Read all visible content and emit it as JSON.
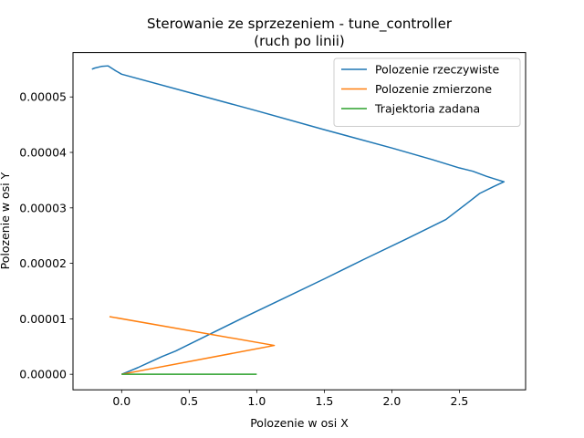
{
  "chart_data": {
    "type": "line",
    "title_line1": "Sterowanie ze sprzezeniem - tune_controller",
    "title_line2": "(ruch po linii)",
    "xlabel": "Polozenie w osi X",
    "ylabel": "Polozenie w osi Y",
    "xlim": [
      -0.36,
      2.99
    ],
    "ylim": [
      -2.8e-06,
      5.8e-05
    ],
    "x_ticks": [
      0.0,
      0.5,
      1.0,
      1.5,
      2.0,
      2.5
    ],
    "x_tick_labels": [
      "0.0",
      "0.5",
      "1.0",
      "1.5",
      "2.0",
      "2.5"
    ],
    "y_ticks": [
      0,
      1e-05,
      2e-05,
      3e-05,
      4e-05,
      5e-05
    ],
    "y_tick_labels": [
      "0.00000",
      "0.00001",
      "0.00002",
      "0.00003",
      "0.00004",
      "0.00005"
    ],
    "grid": false,
    "legend_position": "top-right",
    "series": [
      {
        "name": "Polozenie rzeczywiste",
        "color": "#1f77b4",
        "x": [
          0.0,
          0.05,
          0.12,
          0.2,
          0.3,
          0.4,
          0.6,
          0.9,
          1.2,
          1.5,
          1.8,
          2.1,
          2.4,
          2.55,
          2.65,
          2.75,
          2.83,
          2.75,
          2.7,
          2.6,
          2.5,
          2.3,
          2.0,
          1.5,
          1.0,
          0.5,
          0.0,
          -0.05,
          -0.1,
          -0.15,
          -0.2,
          -0.22
        ],
        "y": [
          0.0,
          5e-07,
          1.2e-06,
          2.1e-06,
          3.2e-06,
          4.2e-06,
          6.6e-06,
          1.02e-05,
          1.37e-05,
          1.72e-05,
          2.08e-05,
          2.43e-05,
          2.79e-05,
          3.07e-05,
          3.26e-05,
          3.38e-05,
          3.47e-05,
          3.53e-05,
          3.57e-05,
          3.66e-05,
          3.72e-05,
          3.87e-05,
          4.08e-05,
          4.41e-05,
          4.75e-05,
          5.08e-05,
          5.41e-05,
          5.48e-05,
          5.56e-05,
          5.55e-05,
          5.52e-05,
          5.5e-05
        ]
      },
      {
        "name": "Polozenie zmierzone",
        "color": "#ff7f0e",
        "x": [
          0.0,
          1.13,
          -0.09
        ],
        "y": [
          0.0,
          5.2e-06,
          1.04e-05
        ]
      },
      {
        "name": "Trajektoria zadana",
        "color": "#2ca02c",
        "x": [
          0.0,
          1.0
        ],
        "y": [
          0.0,
          0.0
        ]
      }
    ]
  }
}
